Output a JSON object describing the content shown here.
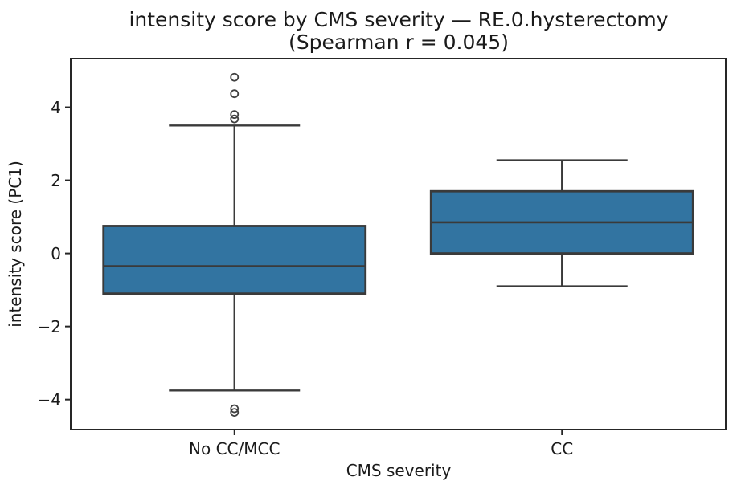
{
  "chart_data": {
    "type": "boxplot",
    "title": "intensity score by CMS severity — RE.0.hysterectomy",
    "subtitle": "(Spearman r = 0.045)",
    "xlabel": "CMS severity",
    "ylabel": "intensity score (PC1)",
    "categories": [
      "No CC/MCC",
      "CC"
    ],
    "ylim": [
      -4.82,
      5.33
    ],
    "yticks": [
      4,
      2,
      0,
      -2,
      -4
    ],
    "grid": false,
    "legend": "none",
    "boxes": [
      {
        "category": "No CC/MCC",
        "whisker_low": -3.75,
        "q1": -1.1,
        "median": -0.35,
        "q3": 0.75,
        "whisker_high": 3.5,
        "outliers": [
          4.82,
          4.37,
          3.8,
          3.68,
          -4.25,
          -4.35
        ]
      },
      {
        "category": "CC",
        "whisker_low": -0.9,
        "q1": 0.0,
        "median": 0.85,
        "q3": 1.7,
        "whisker_high": 2.55,
        "outliers": []
      }
    ],
    "colors": {
      "box_fill": "#3274a1",
      "box_edge": "#3a3a3a",
      "whisker": "#3a3a3a",
      "outlier_edge": "#404040",
      "spine": "#262626",
      "text": "#1a1a1a",
      "background": "#ffffff"
    }
  }
}
